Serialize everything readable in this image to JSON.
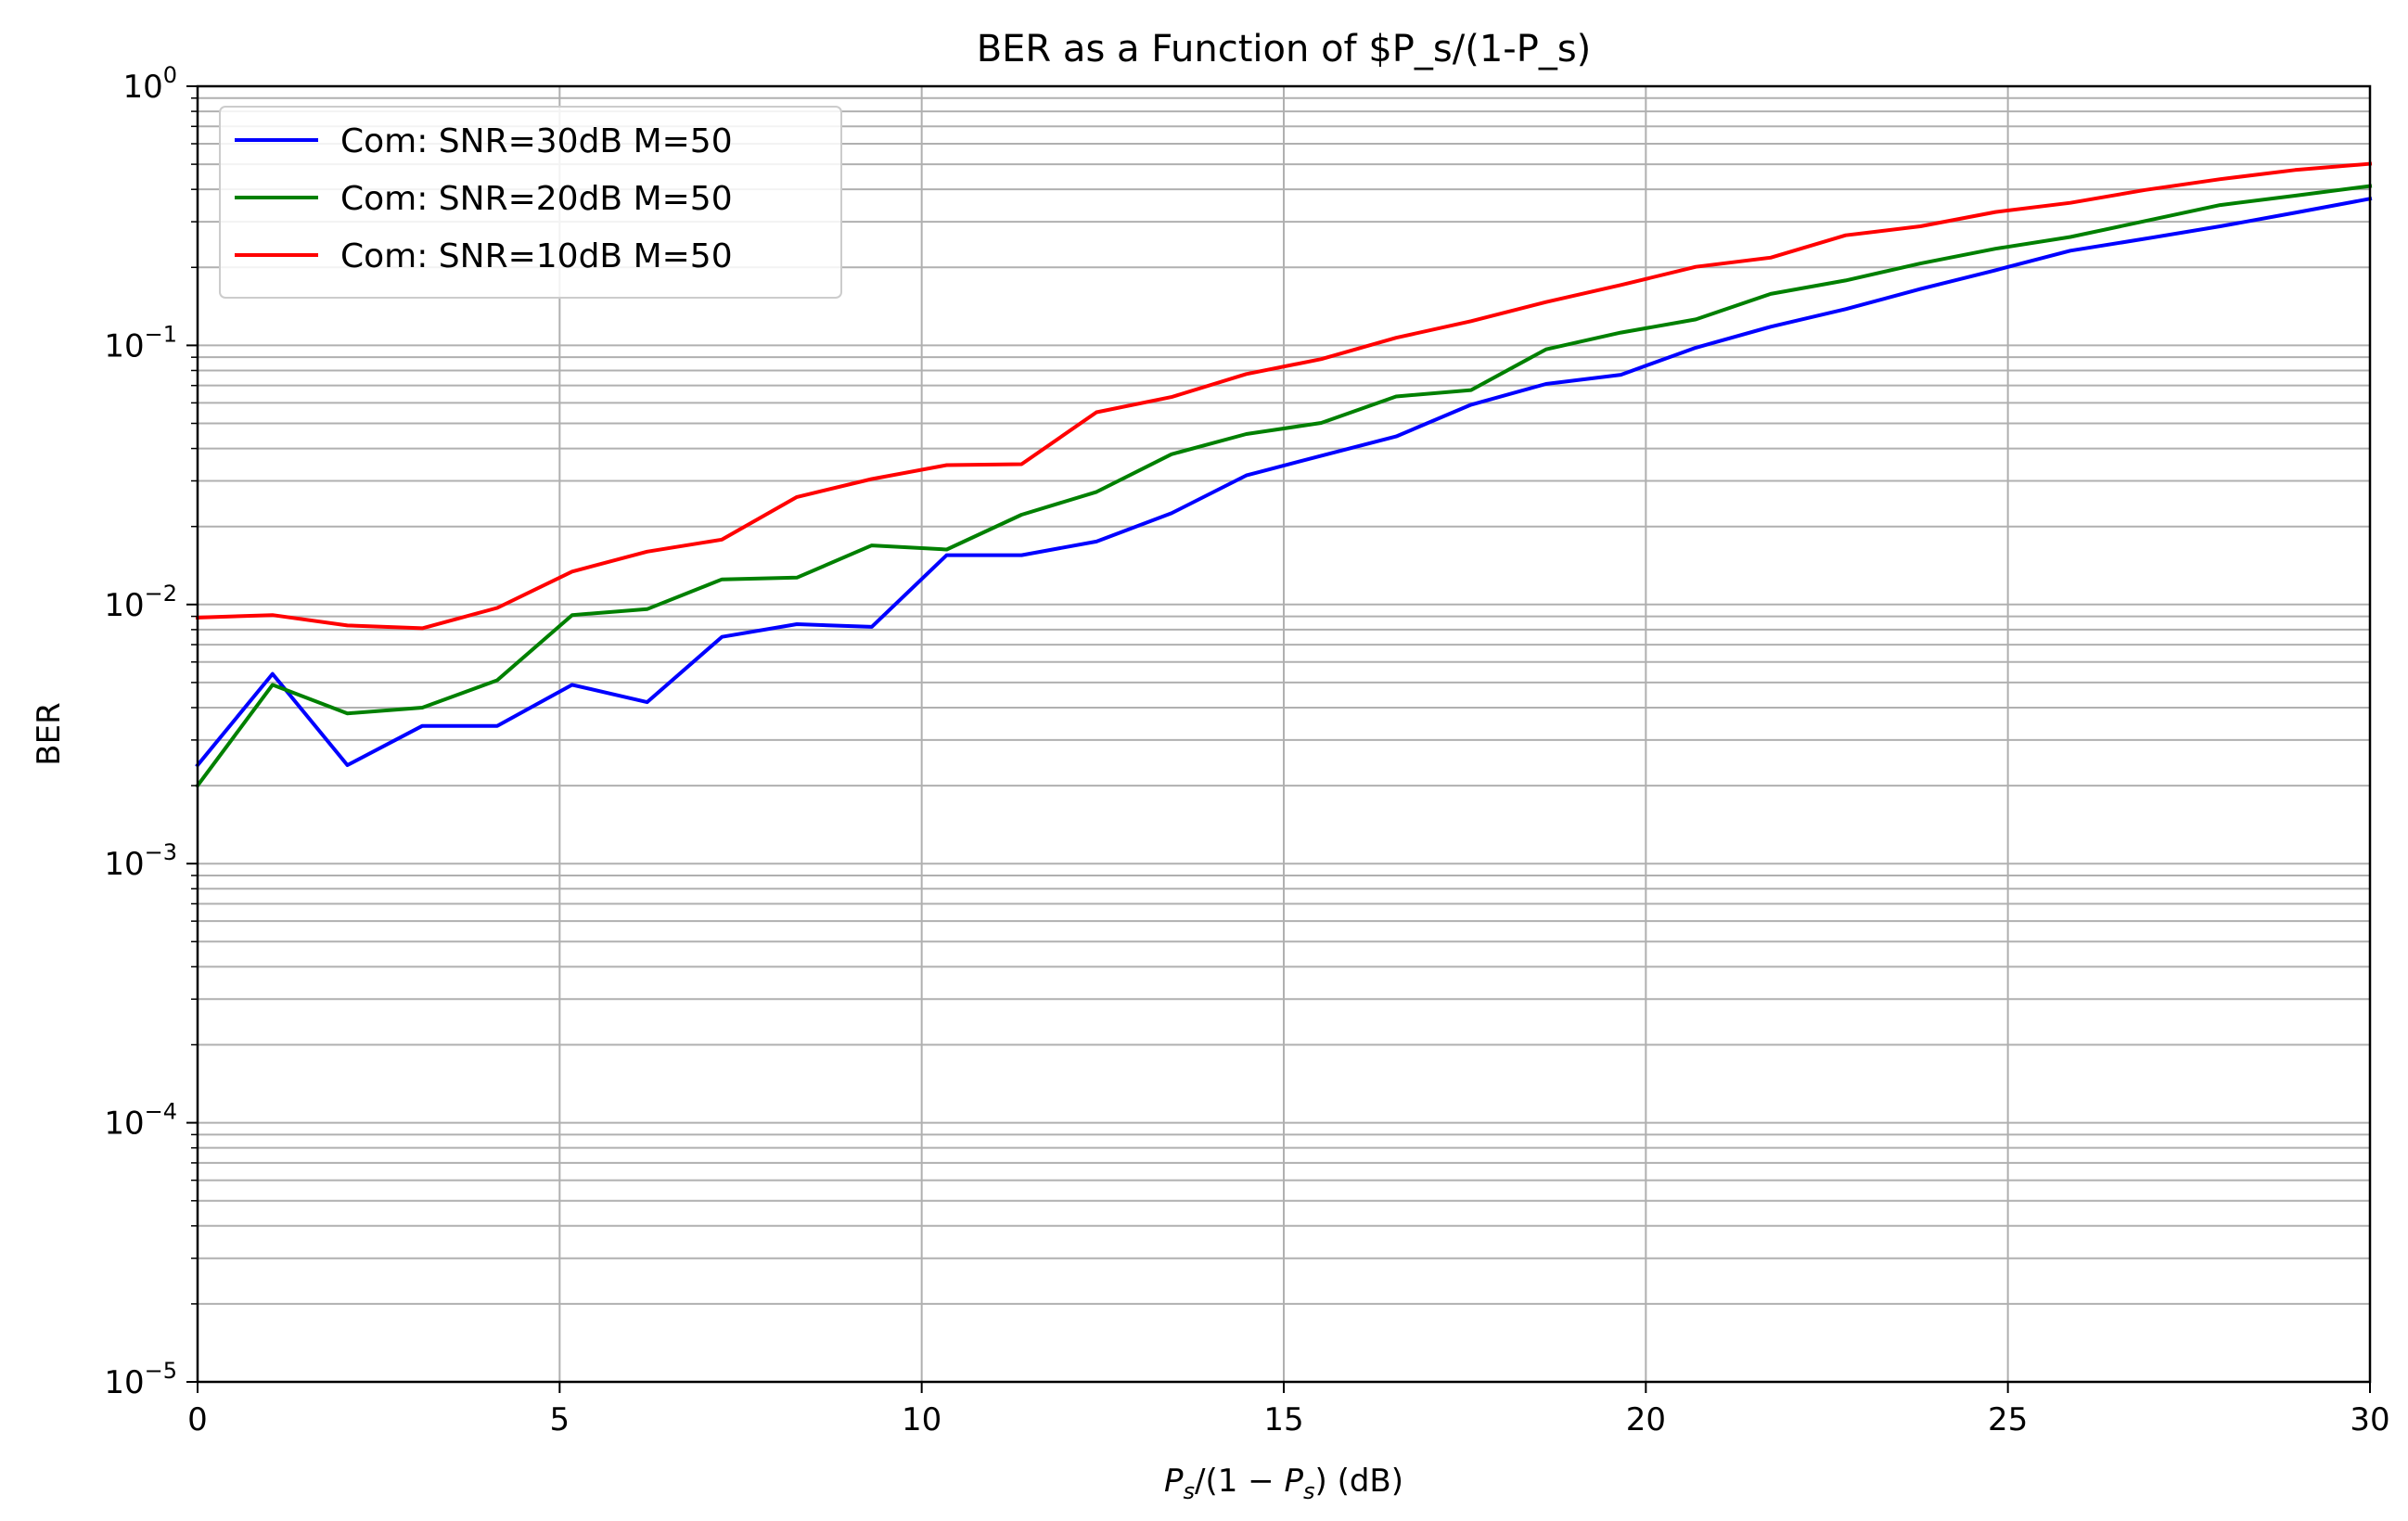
{
  "chart_data": {
    "type": "line",
    "title": "BER as a Function of $P_s/(1-P_s)",
    "xlabel": {
      "p1": "P",
      "p2": "s",
      "p3": "/(1 − ",
      "p4": "P",
      "p5": "s",
      "p6": ") (dB)"
    },
    "ylabel": "BER",
    "xlim": [
      0,
      30
    ],
    "ylim": [
      1e-05,
      1
    ],
    "yscale": "log",
    "grid": true,
    "legend_position": "top-left",
    "x_ticks": [
      {
        "value": 0,
        "label": "0"
      },
      {
        "value": 5,
        "label": "5"
      },
      {
        "value": 10,
        "label": "10"
      },
      {
        "value": 15,
        "label": "15"
      },
      {
        "value": 20,
        "label": "20"
      },
      {
        "value": 25,
        "label": "25"
      },
      {
        "value": 30,
        "label": "30"
      }
    ],
    "y_ticks": [
      {
        "value": 1e-05,
        "base": "10",
        "exp": "−5"
      },
      {
        "value": 0.0001,
        "base": "10",
        "exp": "−4"
      },
      {
        "value": 0.001,
        "base": "10",
        "exp": "−3"
      },
      {
        "value": 0.01,
        "base": "10",
        "exp": "−2"
      },
      {
        "value": 0.1,
        "base": "10",
        "exp": "−1"
      },
      {
        "value": 1,
        "base": "10",
        "exp": "0"
      }
    ],
    "x": [
      0,
      1.0345,
      2.069,
      3.1034,
      4.1379,
      5.1724,
      6.2069,
      7.2414,
      8.2759,
      9.3103,
      10.3448,
      11.3793,
      12.4138,
      13.4483,
      14.4828,
      15.5172,
      16.5517,
      17.5862,
      18.6207,
      19.6552,
      20.6897,
      21.7241,
      22.7586,
      23.7931,
      24.8276,
      25.8621,
      26.8966,
      27.931,
      28.9655,
      30
    ],
    "series": [
      {
        "name": "Com: SNR=30dB M=50",
        "color": "#0000ff",
        "values": [
          0.0024,
          0.0054,
          0.0024,
          0.0034,
          0.0034,
          0.0049,
          0.0042,
          0.0075,
          0.0084,
          0.0082,
          0.0155,
          0.0155,
          0.0175,
          0.0225,
          0.0315,
          0.0375,
          0.0445,
          0.059,
          0.071,
          0.077,
          0.098,
          0.118,
          0.138,
          0.165,
          0.195,
          0.232,
          0.258,
          0.288,
          0.325,
          0.368
        ]
      },
      {
        "name": "Com: SNR=20dB M=50",
        "color": "#008000",
        "values": [
          0.002,
          0.0049,
          0.0038,
          0.004,
          0.0051,
          0.0091,
          0.0096,
          0.0125,
          0.0127,
          0.0169,
          0.0163,
          0.0222,
          0.0272,
          0.038,
          0.0455,
          0.0502,
          0.0635,
          0.0672,
          0.0965,
          0.112,
          0.126,
          0.158,
          0.178,
          0.207,
          0.236,
          0.262,
          0.302,
          0.348,
          0.378,
          0.412
        ]
      },
      {
        "name": "Com: SNR=10dB M=50",
        "color": "#ff0000",
        "values": [
          0.0089,
          0.0091,
          0.0083,
          0.0081,
          0.0097,
          0.0134,
          0.016,
          0.0178,
          0.026,
          0.0305,
          0.0345,
          0.0348,
          0.0552,
          0.0632,
          0.0775,
          0.0885,
          0.107,
          0.124,
          0.147,
          0.171,
          0.201,
          0.218,
          0.266,
          0.288,
          0.327,
          0.355,
          0.398,
          0.438,
          0.475,
          0.502
        ]
      }
    ]
  }
}
